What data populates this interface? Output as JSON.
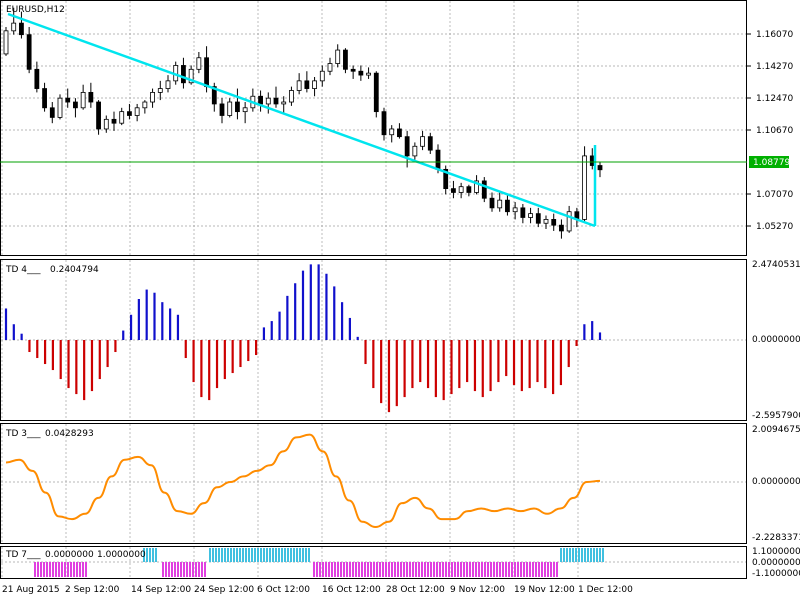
{
  "chart": {
    "title": "EURUSD,H12",
    "current_price": "1.08779",
    "price_ticks": [
      "1.16070",
      "1.14270",
      "1.12470",
      "1.10670",
      "1.08779",
      "1.07070",
      "1.05270"
    ],
    "date_ticks": [
      "21 Aug 2015",
      "2 Sep 12:00",
      "14 Sep 12:00",
      "24 Sep 12:00",
      "6 Oct 12:00",
      "16 Oct 12:00",
      "28 Oct 12:00",
      "9 Nov 12:00",
      "19 Nov 12:00",
      "1 Dec 12:00"
    ],
    "colors": {
      "candle": "#000000",
      "trendline": "#00e5ee",
      "price_line": "#00a000",
      "price_label_bg": "#00b000",
      "td4_up": "#1010cc",
      "td4_down": "#cc0000",
      "td3_line": "#ff8c00",
      "td7_up": "#40c0e0",
      "td7_down": "#e040e0",
      "grid": "#a0a0a0"
    }
  },
  "indicators": {
    "td4": {
      "label": "TD 4___",
      "value": "0.2404794",
      "scale": [
        "2.4740531",
        "0.0000000",
        "-2.5957900"
      ]
    },
    "td3": {
      "label": "TD 3___",
      "value": "0.0428293",
      "scale": [
        "2.0094675",
        "0.0000000",
        "-2.2283371"
      ]
    },
    "td7": {
      "label": "TD 7___",
      "value1": "0.0000000",
      "value2": "1.0000000",
      "scale": [
        "1.1000000",
        "0.0000000",
        "-1.1000000"
      ]
    }
  },
  "chart_data": [
    {
      "type": "candlestick",
      "title": "EURUSD,H12",
      "ylim": [
        1.0435,
        1.1755
      ],
      "trendline": [
        [
          1.1692,
          1.0526
        ]
      ],
      "ohlc": [
        [
          1.148,
          1.162,
          1.147,
          1.16
        ],
        [
          1.16,
          1.172,
          1.158,
          1.164
        ],
        [
          1.164,
          1.17,
          1.156,
          1.158
        ],
        [
          1.158,
          1.162,
          1.138,
          1.14
        ],
        [
          1.14,
          1.144,
          1.128,
          1.13
        ],
        [
          1.13,
          1.133,
          1.118,
          1.12
        ],
        [
          1.12,
          1.123,
          1.112,
          1.115
        ],
        [
          1.115,
          1.127,
          1.114,
          1.125
        ],
        [
          1.125,
          1.13,
          1.12,
          1.123
        ],
        [
          1.123,
          1.125,
          1.115,
          1.12
        ],
        [
          1.12,
          1.132,
          1.119,
          1.128
        ],
        [
          1.128,
          1.133,
          1.12,
          1.123
        ],
        [
          1.123,
          1.124,
          1.106,
          1.109
        ],
        [
          1.109,
          1.116,
          1.107,
          1.114
        ],
        [
          1.114,
          1.118,
          1.108,
          1.112
        ],
        [
          1.112,
          1.12,
          1.111,
          1.118
        ],
        [
          1.118,
          1.122,
          1.114,
          1.116
        ],
        [
          1.116,
          1.122,
          1.113,
          1.12
        ],
        [
          1.12,
          1.124,
          1.117,
          1.123
        ],
        [
          1.123,
          1.13,
          1.12,
          1.128
        ],
        [
          1.128,
          1.134,
          1.124,
          1.13
        ],
        [
          1.13,
          1.137,
          1.128,
          1.134
        ],
        [
          1.134,
          1.144,
          1.132,
          1.142
        ],
        [
          1.142,
          1.146,
          1.13,
          1.133
        ],
        [
          1.133,
          1.142,
          1.132,
          1.14
        ],
        [
          1.14,
          1.149,
          1.138,
          1.146
        ],
        [
          1.146,
          1.152,
          1.128,
          1.131
        ],
        [
          1.131,
          1.133,
          1.118,
          1.122
        ],
        [
          1.122,
          1.125,
          1.112,
          1.116
        ],
        [
          1.116,
          1.125,
          1.115,
          1.123
        ],
        [
          1.123,
          1.13,
          1.114,
          1.118
        ],
        [
          1.118,
          1.123,
          1.112,
          1.12
        ],
        [
          1.12,
          1.13,
          1.118,
          1.126
        ],
        [
          1.126,
          1.129,
          1.118,
          1.122
        ],
        [
          1.122,
          1.128,
          1.117,
          1.125
        ],
        [
          1.125,
          1.131,
          1.12,
          1.122
        ],
        [
          1.122,
          1.126,
          1.117,
          1.123
        ],
        [
          1.123,
          1.131,
          1.121,
          1.129
        ],
        [
          1.129,
          1.138,
          1.127,
          1.134
        ],
        [
          1.134,
          1.139,
          1.128,
          1.13
        ],
        [
          1.13,
          1.136,
          1.126,
          1.134
        ],
        [
          1.134,
          1.142,
          1.131,
          1.139
        ],
        [
          1.139,
          1.146,
          1.137,
          1.143
        ],
        [
          1.143,
          1.153,
          1.141,
          1.15
        ],
        [
          1.15,
          1.151,
          1.138,
          1.14
        ],
        [
          1.14,
          1.142,
          1.135,
          1.139
        ],
        [
          1.139,
          1.142,
          1.134,
          1.137
        ],
        [
          1.137,
          1.141,
          1.135,
          1.138
        ],
        [
          1.138,
          1.139,
          1.115,
          1.118
        ],
        [
          1.118,
          1.12,
          1.103,
          1.106
        ],
        [
          1.106,
          1.111,
          1.102,
          1.109
        ],
        [
          1.109,
          1.112,
          1.104,
          1.105
        ],
        [
          1.105,
          1.108,
          1.089,
          1.095
        ],
        [
          1.095,
          1.102,
          1.093,
          1.1
        ],
        [
          1.1,
          1.108,
          1.098,
          1.105
        ],
        [
          1.105,
          1.107,
          1.096,
          1.098
        ],
        [
          1.098,
          1.101,
          1.086,
          1.088
        ],
        [
          1.088,
          1.09,
          1.075,
          1.078
        ],
        [
          1.078,
          1.082,
          1.073,
          1.076
        ],
        [
          1.076,
          1.081,
          1.073,
          1.079
        ],
        [
          1.079,
          1.08,
          1.074,
          1.076
        ],
        [
          1.076,
          1.085,
          1.075,
          1.082
        ],
        [
          1.082,
          1.084,
          1.071,
          1.073
        ],
        [
          1.073,
          1.076,
          1.066,
          1.068
        ],
        [
          1.068,
          1.076,
          1.066,
          1.072
        ],
        [
          1.072,
          1.075,
          1.064,
          1.066
        ],
        [
          1.066,
          1.071,
          1.062,
          1.068
        ],
        [
          1.068,
          1.07,
          1.06,
          1.063
        ],
        [
          1.063,
          1.068,
          1.06,
          1.065
        ],
        [
          1.065,
          1.068,
          1.058,
          1.06
        ],
        [
          1.06,
          1.064,
          1.057,
          1.062
        ],
        [
          1.062,
          1.065,
          1.056,
          1.059
        ],
        [
          1.059,
          1.062,
          1.052,
          1.056
        ],
        [
          1.056,
          1.069,
          1.055,
          1.066
        ],
        [
          1.066,
          1.068,
          1.058,
          1.062
        ],
        [
          1.062,
          1.1,
          1.06,
          1.095
        ],
        [
          1.095,
          1.099,
          1.088,
          1.09
        ],
        [
          1.09,
          1.092,
          1.084,
          1.0878
        ]
      ]
    },
    {
      "type": "histogram",
      "name": "TD 4",
      "ylim": [
        -2.59579,
        2.4740531
      ],
      "values": [
        1.0,
        0.5,
        0.2,
        -0.4,
        -0.6,
        -0.8,
        -1.0,
        -1.3,
        -1.6,
        -1.8,
        -2.0,
        -1.7,
        -1.3,
        -0.9,
        -0.4,
        0.3,
        0.8,
        1.3,
        1.6,
        1.5,
        1.2,
        1.0,
        0.8,
        -0.6,
        -1.4,
        -1.9,
        -2.0,
        -1.6,
        -1.3,
        -1.1,
        -0.9,
        -0.7,
        -0.5,
        0.4,
        0.6,
        0.9,
        1.4,
        1.8,
        2.2,
        2.4,
        2.4,
        2.1,
        1.7,
        1.2,
        0.7,
        0.1,
        -0.8,
        -1.6,
        -2.1,
        -2.4,
        -2.2,
        -1.9,
        -1.6,
        -1.4,
        -1.6,
        -1.9,
        -2.0,
        -1.8,
        -1.6,
        -1.4,
        -1.7,
        -1.9,
        -1.7,
        -1.4,
        -1.2,
        -1.5,
        -1.7,
        -1.6,
        -1.4,
        -1.6,
        -1.8,
        -1.5,
        -0.9,
        -0.2,
        0.5,
        0.6,
        0.24
      ]
    },
    {
      "type": "line",
      "name": "TD 3",
      "ylim": [
        -2.2283371,
        2.0094675
      ],
      "values": [
        0.7,
        0.8,
        0.4,
        -0.4,
        -1.3,
        -1.4,
        -1.2,
        -0.6,
        0.2,
        0.8,
        0.9,
        0.6,
        -0.4,
        -1.1,
        -1.2,
        -0.8,
        -0.2,
        0.0,
        0.2,
        0.4,
        0.6,
        1.1,
        1.6,
        1.7,
        1.1,
        0.2,
        -0.7,
        -1.5,
        -1.7,
        -1.5,
        -0.8,
        -0.6,
        -1.0,
        -1.4,
        -1.4,
        -1.1,
        -1.0,
        -1.1,
        -1.0,
        -1.1,
        -1.0,
        -1.2,
        -1.0,
        -0.6,
        0.0,
        0.04
      ]
    },
    {
      "type": "histogram",
      "name": "TD 7",
      "ylim": [
        -1.1,
        1.1
      ],
      "values": [
        0,
        0,
        0,
        0,
        0,
        0,
        0,
        0,
        0,
        0,
        0,
        0,
        0,
        0,
        0,
        0,
        0,
        0,
        0,
        0,
        0,
        0,
        0,
        0,
        0,
        0,
        0,
        0,
        0,
        0,
        0,
        0,
        0,
        0,
        0,
        0,
        0,
        0,
        0,
        0,
        0,
        0,
        0,
        0,
        0,
        0,
        0,
        0,
        0,
        0,
        0,
        0,
        0,
        0,
        0,
        0,
        0,
        0,
        0,
        0,
        0,
        0,
        0,
        0,
        0,
        0,
        0,
        0,
        0,
        0,
        0,
        0,
        0,
        0,
        0,
        0
      ]
    }
  ]
}
